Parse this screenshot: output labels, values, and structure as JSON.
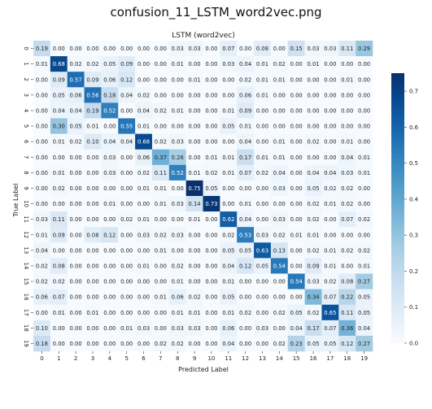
{
  "window_title": "confusion_11_LSTM_word2vec.png",
  "chart_data": {
    "type": "heatmap",
    "title": "LSTM (word2vec)",
    "xlabel": "Predicted Label",
    "ylabel": "True Label",
    "x_categories": [
      "0",
      "1",
      "2",
      "3",
      "4",
      "5",
      "6",
      "7",
      "8",
      "9",
      "10",
      "11",
      "12",
      "13",
      "14",
      "15",
      "16",
      "17",
      "18",
      "19"
    ],
    "y_categories": [
      "0",
      "1",
      "2",
      "3",
      "4",
      "5",
      "6",
      "7",
      "8",
      "9",
      "10",
      "11",
      "12",
      "13",
      "14",
      "15",
      "16",
      "17",
      "18",
      "19"
    ],
    "values": [
      [
        "0.19",
        "0.00",
        "0.00",
        "0.00",
        "0.00",
        "0.00",
        "0.00",
        "0.00",
        "0.03",
        "0.03",
        "0.00",
        "0.07",
        "0.00",
        "0.08",
        "0.00",
        "0.15",
        "0.03",
        "0.03",
        "0.11",
        "0.29"
      ],
      [
        "0.01",
        "0.68",
        "0.02",
        "0.02",
        "0.05",
        "0.09",
        "0.00",
        "0.00",
        "0.01",
        "0.00",
        "0.00",
        "0.03",
        "0.04",
        "0.01",
        "0.02",
        "0.00",
        "0.01",
        "0.00",
        "0.00",
        "0.00"
      ],
      [
        "0.00",
        "0.09",
        "0.57",
        "0.09",
        "0.06",
        "0.12",
        "0.00",
        "0.00",
        "0.00",
        "0.01",
        "0.00",
        "0.00",
        "0.02",
        "0.01",
        "0.01",
        "0.00",
        "0.00",
        "0.00",
        "0.01",
        "0.00"
      ],
      [
        "0.00",
        "0.05",
        "0.06",
        "0.56",
        "0.18",
        "0.04",
        "0.02",
        "0.00",
        "0.00",
        "0.00",
        "0.00",
        "0.00",
        "0.06",
        "0.01",
        "0.00",
        "0.00",
        "0.00",
        "0.00",
        "0.00",
        "0.00"
      ],
      [
        "0.00",
        "0.04",
        "0.04",
        "0.19",
        "0.52",
        "0.00",
        "0.04",
        "0.02",
        "0.01",
        "0.00",
        "0.00",
        "0.01",
        "0.09",
        "0.00",
        "0.00",
        "0.00",
        "0.00",
        "0.00",
        "0.00",
        "0.00"
      ],
      [
        "0.00",
        "0.30",
        "0.05",
        "0.01",
        "0.00",
        "0.55",
        "0.01",
        "0.00",
        "0.00",
        "0.00",
        "0.00",
        "0.05",
        "0.01",
        "0.00",
        "0.00",
        "0.00",
        "0.00",
        "0.00",
        "0.00",
        "0.00"
      ],
      [
        "0.00",
        "0.01",
        "0.02",
        "0.10",
        "0.04",
        "0.04",
        "0.68",
        "0.02",
        "0.03",
        "0.00",
        "0.00",
        "0.00",
        "0.04",
        "0.00",
        "0.01",
        "0.00",
        "0.02",
        "0.00",
        "0.01",
        "0.00"
      ],
      [
        "0.00",
        "0.00",
        "0.00",
        "0.00",
        "0.03",
        "0.00",
        "0.06",
        "0.37",
        "0.26",
        "0.00",
        "0.01",
        "0.01",
        "0.17",
        "0.01",
        "0.01",
        "0.00",
        "0.00",
        "0.00",
        "0.04",
        "0.01"
      ],
      [
        "0.00",
        "0.01",
        "0.00",
        "0.00",
        "0.03",
        "0.00",
        "0.02",
        "0.11",
        "0.52",
        "0.01",
        "0.02",
        "0.01",
        "0.07",
        "0.02",
        "0.04",
        "0.00",
        "0.04",
        "0.04",
        "0.03",
        "0.01"
      ],
      [
        "0.00",
        "0.02",
        "0.00",
        "0.00",
        "0.00",
        "0.00",
        "0.01",
        "0.01",
        "0.00",
        "0.75",
        "0.05",
        "0.00",
        "0.00",
        "0.00",
        "0.03",
        "0.00",
        "0.05",
        "0.02",
        "0.02",
        "0.00"
      ],
      [
        "0.00",
        "0.00",
        "0.00",
        "0.00",
        "0.01",
        "0.00",
        "0.00",
        "0.01",
        "0.03",
        "0.14",
        "0.73",
        "0.00",
        "0.01",
        "0.00",
        "0.00",
        "0.00",
        "0.02",
        "0.01",
        "0.02",
        "0.00"
      ],
      [
        "0.03",
        "0.11",
        "0.00",
        "0.00",
        "0.00",
        "0.02",
        "0.01",
        "0.00",
        "0.00",
        "0.01",
        "0.00",
        "0.62",
        "0.04",
        "0.00",
        "0.03",
        "0.00",
        "0.02",
        "0.00",
        "0.07",
        "0.02"
      ],
      [
        "0.01",
        "0.09",
        "0.00",
        "0.08",
        "0.12",
        "0.00",
        "0.03",
        "0.02",
        "0.03",
        "0.00",
        "0.00",
        "0.02",
        "0.53",
        "0.03",
        "0.02",
        "0.01",
        "0.01",
        "0.00",
        "0.00",
        "0.00"
      ],
      [
        "0.04",
        "0.00",
        "0.00",
        "0.00",
        "0.00",
        "0.00",
        "0.00",
        "0.01",
        "0.00",
        "0.00",
        "0.00",
        "0.05",
        "0.05",
        "0.63",
        "0.13",
        "0.00",
        "0.02",
        "0.01",
        "0.02",
        "0.02"
      ],
      [
        "0.02",
        "0.08",
        "0.00",
        "0.00",
        "0.00",
        "0.00",
        "0.01",
        "0.00",
        "0.02",
        "0.00",
        "0.00",
        "0.04",
        "0.12",
        "0.05",
        "0.54",
        "0.00",
        "0.09",
        "0.01",
        "0.00",
        "0.01"
      ],
      [
        "0.02",
        "0.02",
        "0.00",
        "0.00",
        "0.00",
        "0.00",
        "0.00",
        "0.00",
        "0.01",
        "0.00",
        "0.00",
        "0.01",
        "0.00",
        "0.00",
        "0.00",
        "0.54",
        "0.03",
        "0.02",
        "0.08",
        "0.27"
      ],
      [
        "0.06",
        "0.07",
        "0.00",
        "0.00",
        "0.00",
        "0.00",
        "0.00",
        "0.01",
        "0.06",
        "0.02",
        "0.00",
        "0.05",
        "0.00",
        "0.00",
        "0.00",
        "0.00",
        "0.34",
        "0.07",
        "0.22",
        "0.05"
      ],
      [
        "0.00",
        "0.01",
        "0.00",
        "0.01",
        "0.00",
        "0.00",
        "0.00",
        "0.00",
        "0.01",
        "0.01",
        "0.00",
        "0.01",
        "0.02",
        "0.00",
        "0.02",
        "0.05",
        "0.02",
        "0.65",
        "0.11",
        "0.05"
      ],
      [
        "0.10",
        "0.00",
        "0.00",
        "0.00",
        "0.00",
        "0.01",
        "0.03",
        "0.00",
        "0.03",
        "0.03",
        "0.00",
        "0.06",
        "0.00",
        "0.03",
        "0.00",
        "0.04",
        "0.17",
        "0.07",
        "0.36",
        "0.04"
      ],
      [
        "0.18",
        "0.00",
        "0.00",
        "0.00",
        "0.00",
        "0.00",
        "0.00",
        "0.02",
        "0.02",
        "0.00",
        "0.00",
        "0.04",
        "0.00",
        "0.00",
        "0.02",
        "0.23",
        "0.05",
        "0.05",
        "0.12",
        "0.27"
      ]
    ],
    "colormap": "Blues",
    "vmin": 0.0,
    "vmax": 0.75,
    "colorbar_ticks": [
      "0.0",
      "0.1",
      "0.2",
      "0.3",
      "0.4",
      "0.5",
      "0.6",
      "0.7"
    ]
  }
}
